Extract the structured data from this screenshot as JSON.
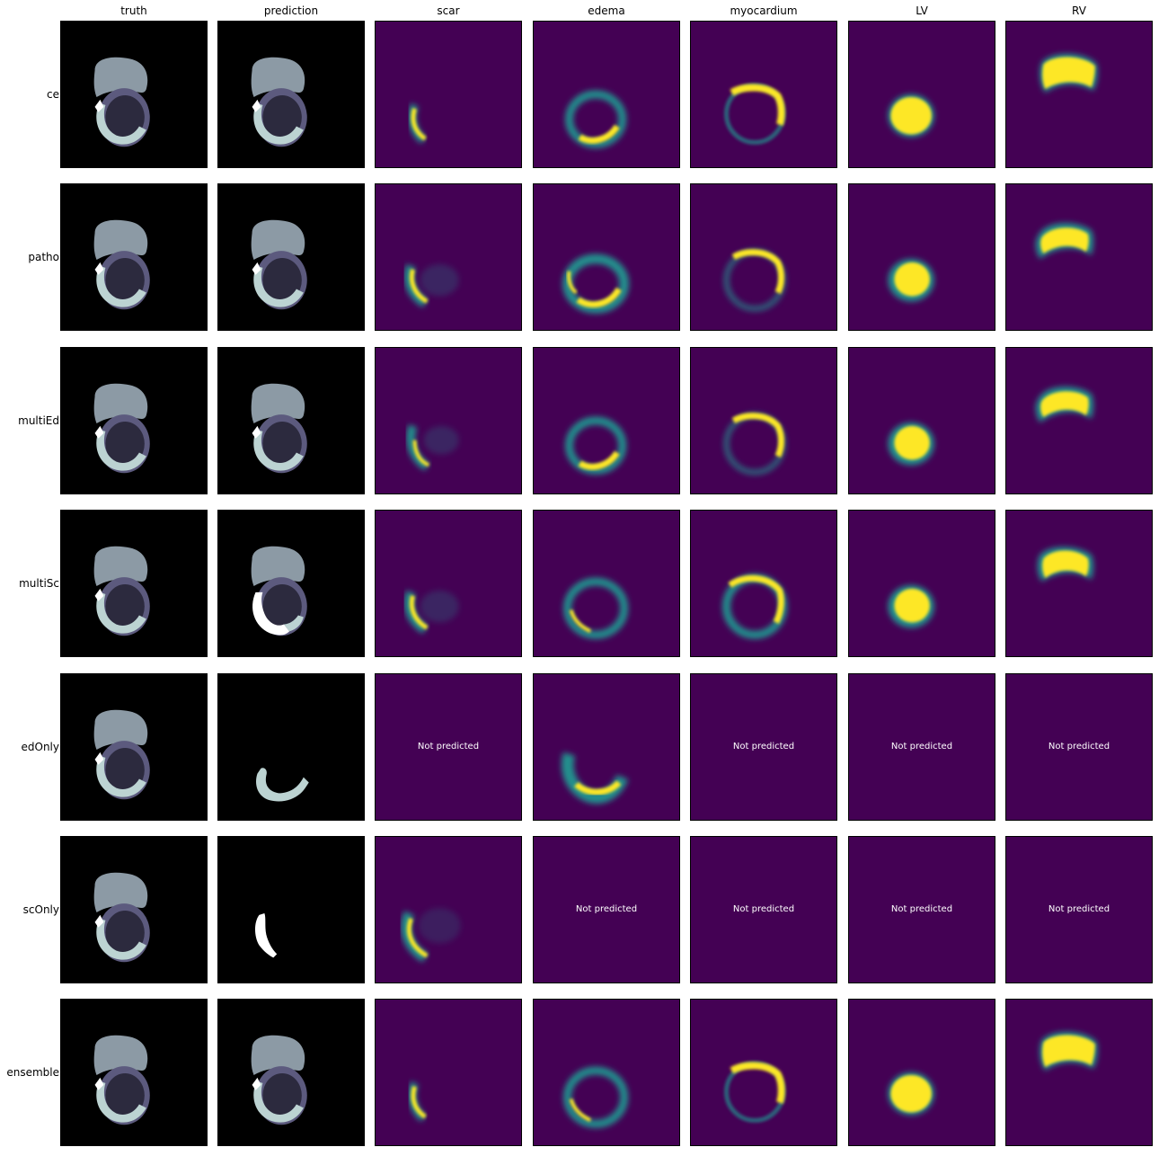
{
  "columns": [
    "truth",
    "prediction",
    "scar",
    "edema",
    "myocardium",
    "LV",
    "RV"
  ],
  "rows": [
    {
      "label": "ce",
      "prediction": "full",
      "maps": {
        "scar": "scar_a",
        "edema": "edema_a",
        "myocardium": "myo_a",
        "LV": "lv_a",
        "RV": "rv_a"
      }
    },
    {
      "label": "patho",
      "prediction": "full",
      "maps": {
        "scar": "scar_b",
        "edema": "edema_b",
        "myocardium": "myo_b",
        "LV": "lv_b",
        "RV": "rv_b"
      }
    },
    {
      "label": "multiEd",
      "prediction": "full",
      "maps": {
        "scar": "scar_c",
        "edema": "edema_a",
        "myocardium": "myo_b",
        "LV": "lv_b",
        "RV": "rv_b"
      }
    },
    {
      "label": "multiSc",
      "prediction": "scar",
      "maps": {
        "scar": "scar_b",
        "edema": "edema_c",
        "myocardium": "myo_c",
        "LV": "lv_b",
        "RV": "rv_c"
      }
    },
    {
      "label": "edOnly",
      "prediction": "edema",
      "maps": {
        "scar": null,
        "edema": "edema_d",
        "myocardium": null,
        "LV": null,
        "RV": null
      }
    },
    {
      "label": "scOnly",
      "prediction": "scaronly",
      "maps": {
        "scar": "scar_d",
        "edema": null,
        "myocardium": null,
        "LV": null,
        "RV": null
      }
    },
    {
      "label": "ensemble",
      "prediction": "full",
      "maps": {
        "scar": "scar_a",
        "edema": "edema_c",
        "myocardium": "myo_a",
        "LV": "lv_a",
        "RV": "rv_a"
      }
    }
  ],
  "not_predicted_text": "Not predicted",
  "colors": {
    "bg_black": "#000000",
    "rv_gray": "#8c9aa5",
    "myo_slate": "#5c5a7e",
    "lv_dark": "#2c2a3e",
    "edema_pale": "#bcd3d2",
    "scar_white": "#ffffff",
    "viridis_low": "#440154",
    "viridis_mid": "#21908d",
    "viridis_high": "#fde725"
  }
}
